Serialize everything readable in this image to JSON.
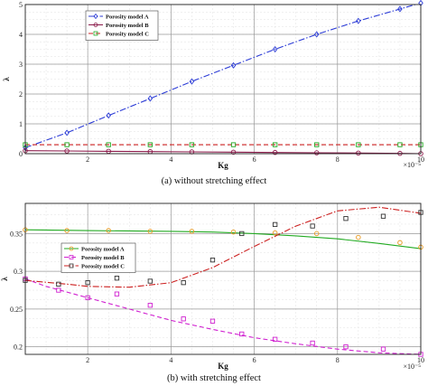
{
  "charts": [
    {
      "caption": "(a) without stretching effect",
      "chart_data": {
        "type": "line",
        "xlabel": "Kg",
        "ylabel": "λ",
        "x_multiplier": "×10⁻⁵",
        "xlim": [
          0.5,
          10
        ],
        "ylim": [
          0,
          5
        ],
        "xticks": [
          2,
          4,
          6,
          8,
          10
        ],
        "yticks": [
          0,
          1,
          2,
          3,
          4,
          5
        ],
        "grid": true,
        "legend_position": "top-left",
        "series": [
          {
            "name": "Porosity model A",
            "color": "#2b3bd6",
            "line_style": "dash-dot",
            "marker": "diamond",
            "x": [
              0.5,
              1.5,
              2.5,
              3.5,
              4.5,
              5.5,
              6.5,
              7.5,
              8.5,
              9.5,
              10
            ],
            "y": [
              0.2,
              0.7,
              1.28,
              1.85,
              2.42,
              2.96,
              3.5,
              4.0,
              4.45,
              4.85,
              5.05
            ]
          },
          {
            "name": "Porosity model B",
            "color": "#8b1a4a",
            "line_style": "solid",
            "marker": "circle",
            "x": [
              0.5,
              1.5,
              2.5,
              3.5,
              4.5,
              5.5,
              6.5,
              7.5,
              8.5,
              9.5,
              10
            ],
            "y": [
              0.1,
              0.09,
              0.08,
              0.07,
              0.06,
              0.05,
              0.04,
              0.03,
              0.02,
              0.01,
              0.0
            ]
          },
          {
            "name": "Porosity model C",
            "color": "#cc2020",
            "marker_color": "#22aa22",
            "line_style": "dashed",
            "marker": "square",
            "x": [
              0.5,
              1.5,
              2.5,
              3.5,
              4.5,
              5.5,
              6.5,
              7.5,
              8.5,
              9.5,
              10
            ],
            "y": [
              0.3,
              0.3,
              0.3,
              0.3,
              0.3,
              0.3,
              0.3,
              0.3,
              0.3,
              0.3,
              0.3
            ]
          }
        ]
      }
    },
    {
      "caption": "(b) with stretching effect",
      "chart_data": {
        "type": "line",
        "xlabel": "Kg",
        "ylabel": "λ",
        "x_multiplier": "×10⁻⁵",
        "xlim": [
          0.5,
          10
        ],
        "ylim": [
          0.19,
          0.39
        ],
        "xticks": [
          2,
          4,
          6,
          8,
          10
        ],
        "yticks": [
          0.2,
          0.25,
          0.3,
          0.35
        ],
        "grid": true,
        "legend_position": "middle-left",
        "series": [
          {
            "name": "Porosity model A",
            "color": "#22aa22",
            "marker_color": "#e89a20",
            "line_style": "solid",
            "marker": "circle",
            "line_x": [
              0.5,
              2,
              4,
              5,
              6,
              7,
              8,
              9,
              10
            ],
            "line_y": [
              0.355,
              0.354,
              0.353,
              0.352,
              0.35,
              0.347,
              0.343,
              0.337,
              0.33
            ],
            "x": [
              0.5,
              1.5,
              2.5,
              3.5,
              4.5,
              5.5,
              6.5,
              7.5,
              8.5,
              9.5,
              10
            ],
            "y": [
              0.355,
              0.354,
              0.354,
              0.353,
              0.353,
              0.352,
              0.351,
              0.35,
              0.345,
              0.338,
              0.332
            ]
          },
          {
            "name": "Porosity model B",
            "color": "#d020d0",
            "line_style": "dashed",
            "marker": "square",
            "line_x": [
              0.5,
              1,
              2,
              3,
              4,
              5,
              6,
              7,
              8,
              9,
              10
            ],
            "line_y": [
              0.29,
              0.28,
              0.265,
              0.25,
              0.235,
              0.223,
              0.212,
              0.204,
              0.197,
              0.192,
              0.19
            ],
            "x": [
              0.5,
              1.3,
              2.0,
              2.7,
              3.5,
              4.3,
              5.0,
              5.7,
              6.5,
              7.4,
              8.2,
              9.1,
              10
            ],
            "y": [
              0.29,
              0.275,
              0.265,
              0.27,
              0.255,
              0.237,
              0.234,
              0.217,
              0.21,
              0.205,
              0.2,
              0.197,
              0.19
            ]
          },
          {
            "name": "Porosity model C",
            "color": "#cc2020",
            "marker_color": "#333333",
            "line_style": "dash-dot",
            "marker": "square",
            "line_x": [
              0.5,
              1.5,
              2,
              3,
              4,
              5,
              6,
              7,
              8,
              9,
              10
            ],
            "line_y": [
              0.288,
              0.283,
              0.28,
              0.279,
              0.285,
              0.305,
              0.333,
              0.36,
              0.38,
              0.385,
              0.377
            ],
            "x": [
              0.5,
              1.3,
              2.0,
              2.7,
              3.5,
              4.3,
              5.0,
              5.7,
              6.5,
              7.4,
              8.2,
              9.1,
              10
            ],
            "y": [
              0.288,
              0.283,
              0.285,
              0.291,
              0.287,
              0.285,
              0.315,
              0.35,
              0.362,
              0.36,
              0.37,
              0.373,
              0.378
            ]
          }
        ]
      }
    }
  ]
}
